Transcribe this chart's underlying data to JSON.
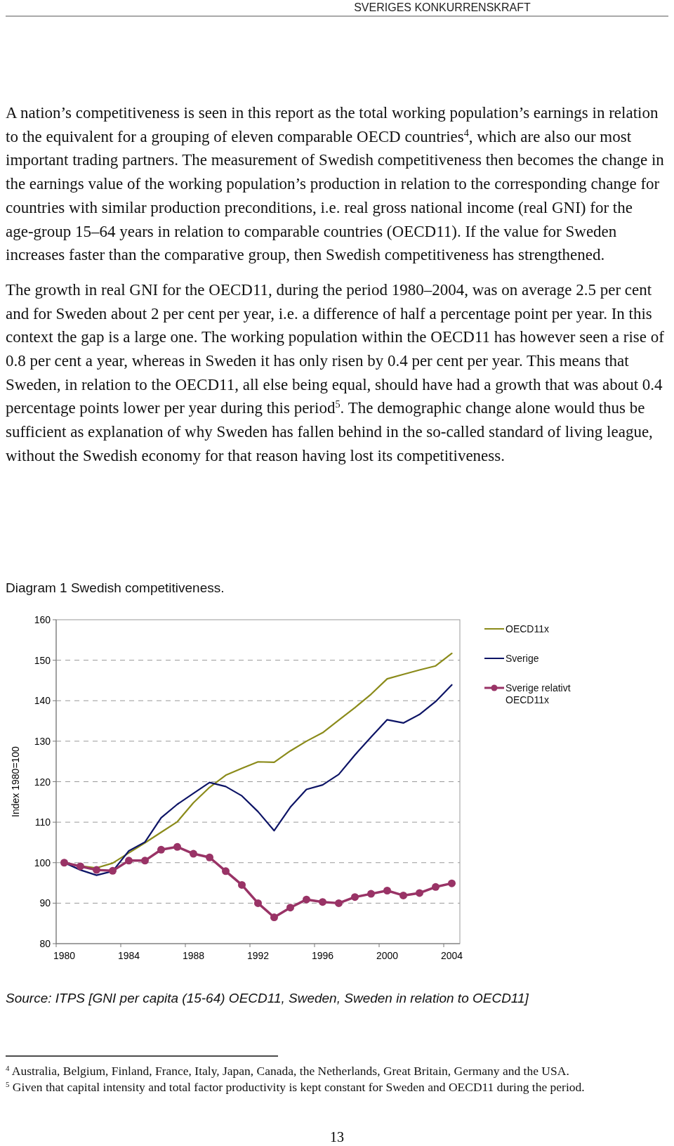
{
  "chart_data": {
    "type": "line",
    "title": "Diagram 1 Swedish competitiveness.",
    "ylabel": "Index 1980=100",
    "categories": [
      "1980",
      null,
      null,
      null,
      "1984",
      null,
      null,
      null,
      "1988",
      null,
      null,
      null,
      "1992",
      null,
      null,
      null,
      "1996",
      null,
      null,
      null,
      "2000",
      null,
      null,
      null,
      "2004"
    ],
    "series": [
      {
        "name": "OECD11x",
        "color": "#8b8b1a",
        "marker": "none",
        "values": [
          100,
          99.2,
          98.7,
          99.9,
          102.4,
          104.9,
          107.5,
          110.1,
          114.8,
          118.6,
          121.6,
          123.3,
          124.9,
          124.8,
          127.6,
          130.0,
          132.1,
          135.2,
          138.3,
          141.6,
          145.4,
          146.5,
          147.6,
          148.6,
          151.7
        ]
      },
      {
        "name": "Sverige",
        "color": "#0d1466",
        "marker": "none",
        "values": [
          100,
          98.2,
          96.9,
          97.9,
          102.9,
          105.1,
          111.1,
          114.4,
          117.1,
          119.8,
          118.8,
          116.5,
          112.6,
          107.9,
          113.7,
          118.1,
          119.2,
          121.8,
          126.6,
          131.0,
          135.3,
          134.5,
          136.6,
          139.8,
          143.9
        ]
      },
      {
        "name": "Sverige relativt OECD11x",
        "color": "#993366",
        "marker": "circle",
        "values": [
          100,
          99.1,
          98.2,
          98.0,
          100.5,
          100.5,
          103.2,
          103.9,
          102.2,
          101.3,
          97.9,
          94.5,
          90.0,
          86.5,
          88.9,
          90.9,
          90.3,
          90.0,
          91.5,
          92.3,
          93.1,
          91.9,
          92.5,
          94.0,
          94.9
        ]
      }
    ],
    "ylim": [
      80,
      160
    ],
    "yticks": [
      80,
      90,
      100,
      110,
      120,
      130,
      140,
      150,
      160
    ],
    "grid": "y",
    "legend": "right",
    "line_style": "solid",
    "annotations": [
      "SVERIGES KONKURRENSKRAFT",
      "A nation’s competitiveness is seen in this report as the total working population’s earnings in relation to the equivalent for a grouping of eleven comparable OECD countries$^{4}$, which are also our most important trading partners. The measurement of Swedish competitiveness then becomes the change in the earnings value of the working population’s production in relation to the corresponding change for countries with similar production preconditions, i.e. real gross national income (real GNI) for the age-group 15–64 years in relation to comparable countries (OECD11). If the value for Sweden increases faster than the comparative group, then Swedish competitiveness has strengthened.",
      "The growth in real GNI for the OECD11, during the period 1980–2004, was on average 2.5 per cent and for Sweden about 2 per cent per year, i.e. a difference of half a percentage point per year. In this context the gap is a large one. The working population within the OECD11 has however seen a rise of 0.8 per cent a year, whereas in Sweden it has only risen by 0.4 per cent per year. This means that Sweden, in relation to the OECD11, all else being equal, should have had a growth that was about 0.4 percentage points lower per year during this period$^{5}$. The demographic change alone would thus be sufficient as explanation of why Sweden has fallen behind in the so-called standard of living league, without the Swedish economy for that reason having lost its competitiveness.",
      "Source: ITPS [GNI per capita  (15-64) OECD11, Sweden, Sweden in relation to OECD11]",
      "$^{4}$ Australia, Belgium, Finland, France, Italy, Japan, Canada, the Netherlands, Great Britain, Germany and the USA.",
      "$^{5}$ Given that capital intensity and total factor productivity is kept constant for Sweden and OECD11 during the period.",
      "13"
    ]
  }
}
